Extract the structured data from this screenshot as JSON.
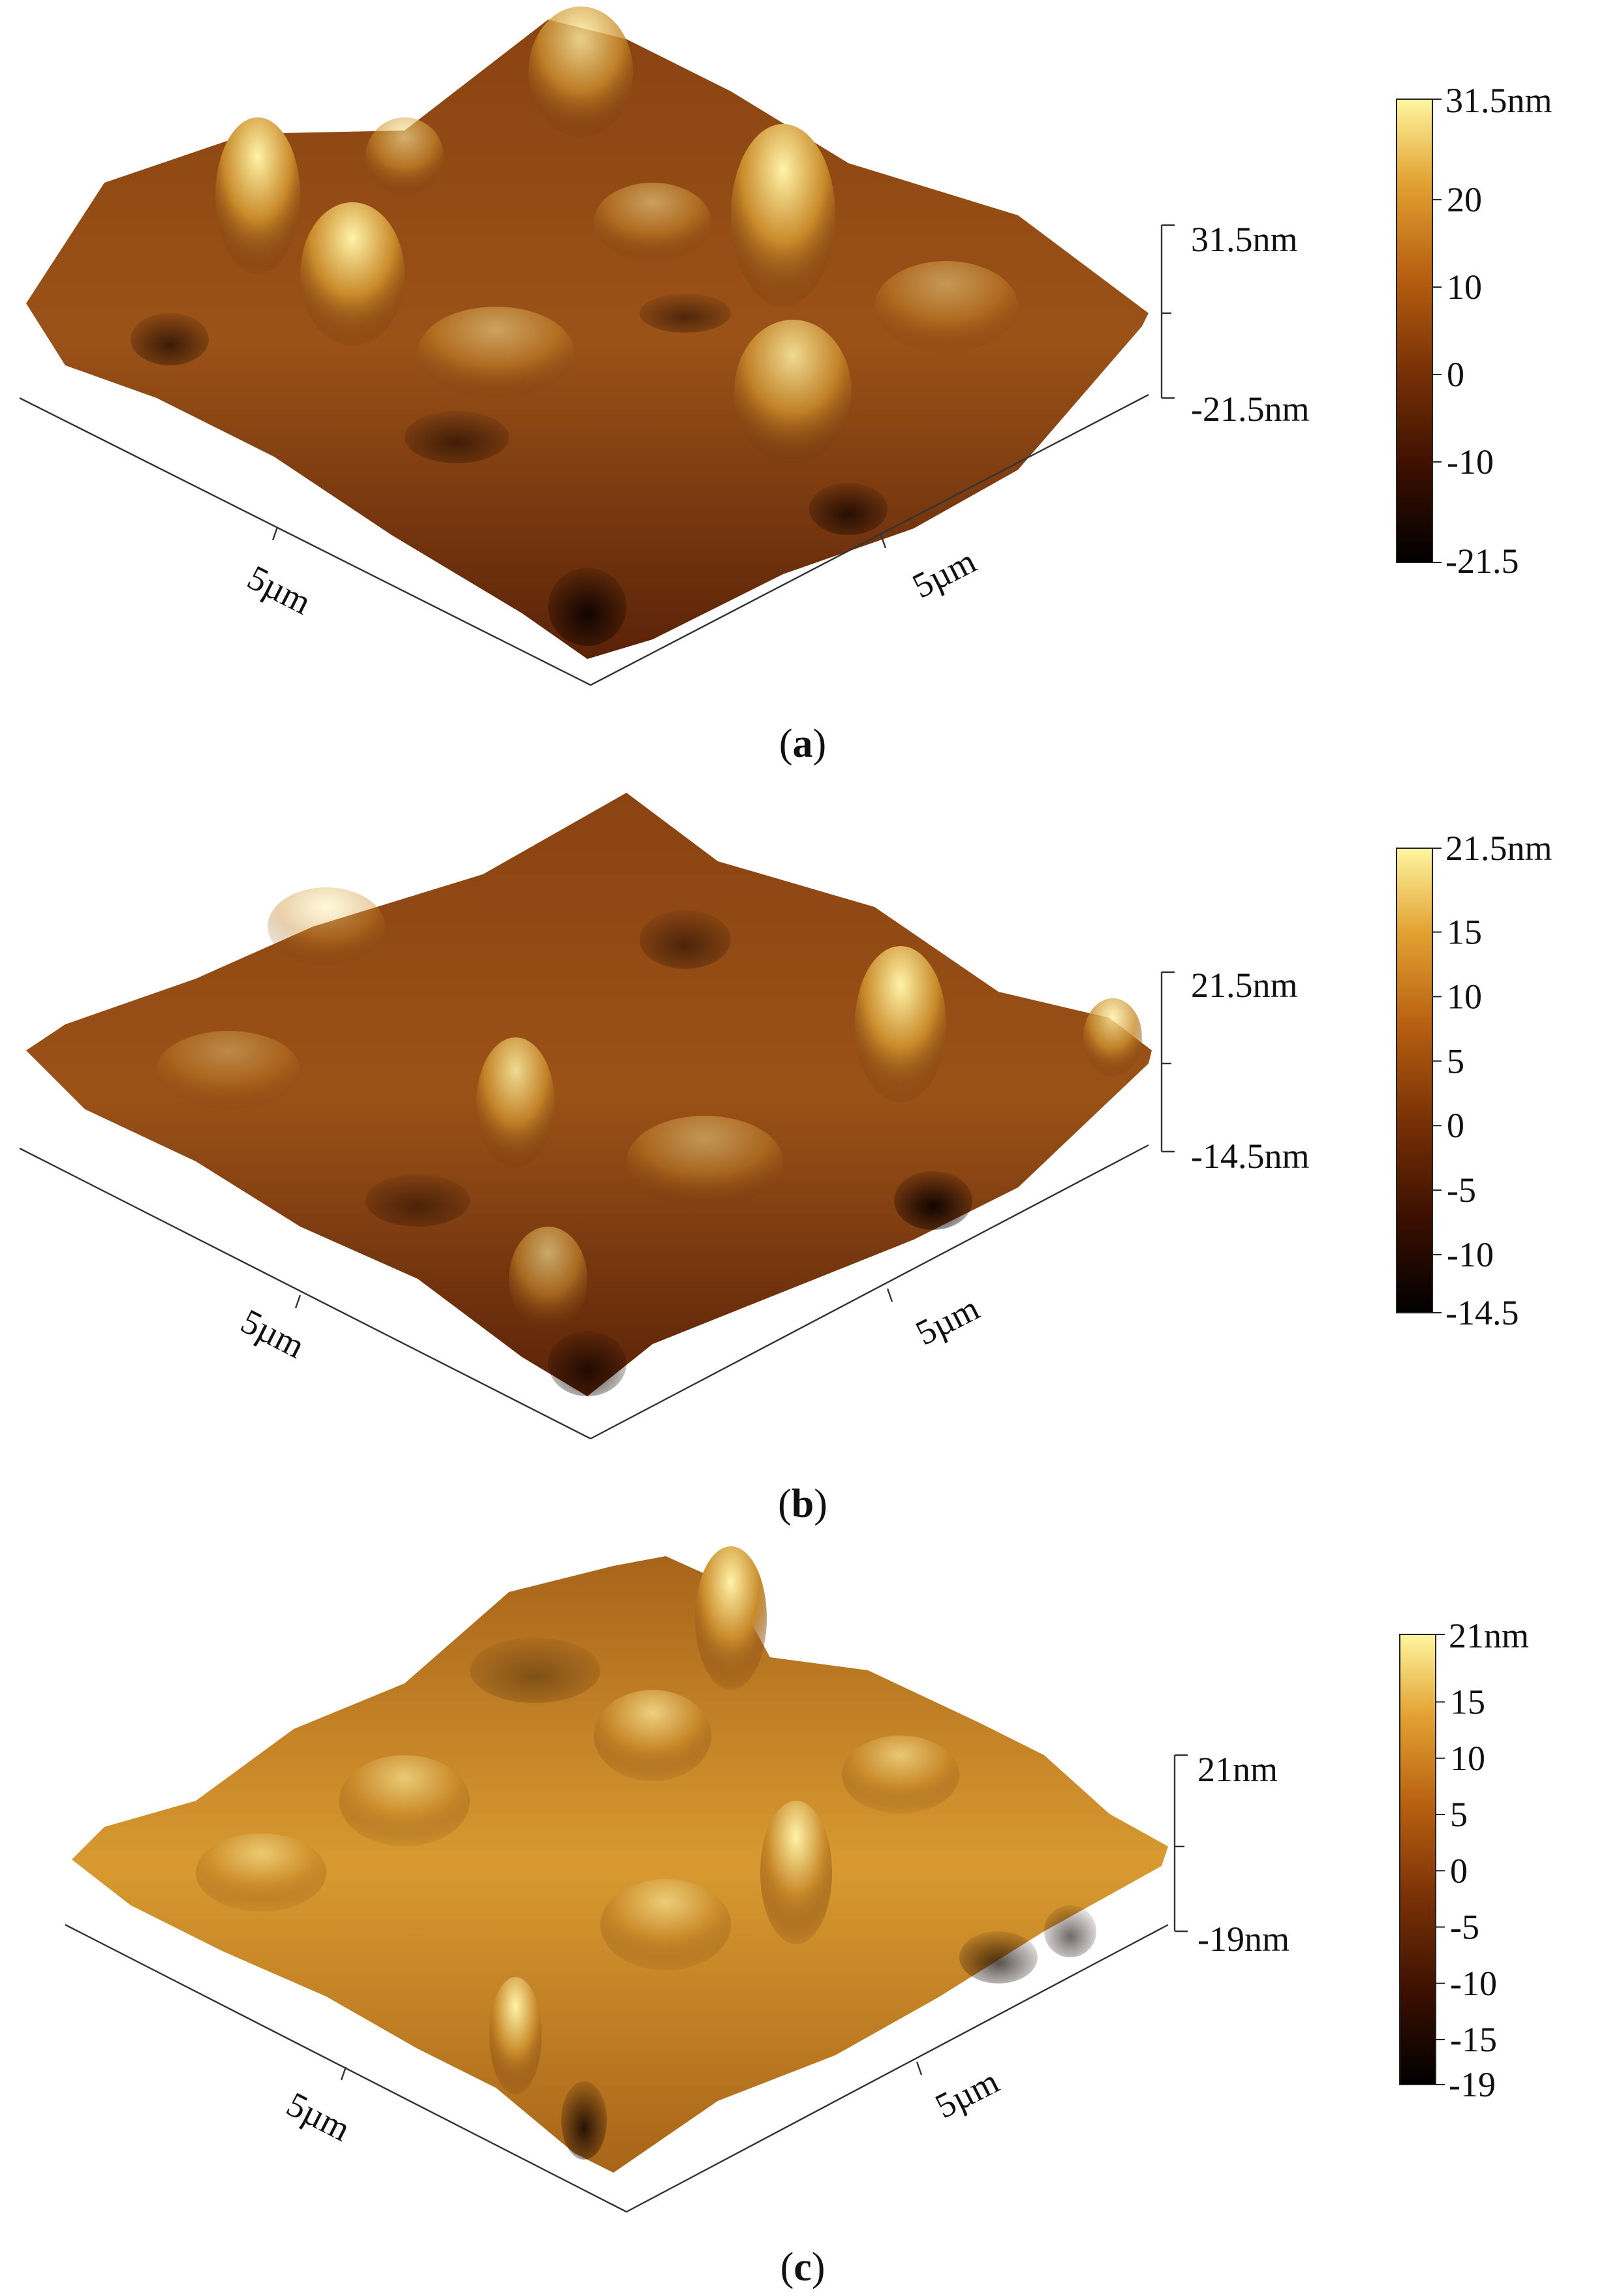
{
  "panels": [
    {
      "id": "a",
      "caption_open": "(",
      "caption_letter": "a",
      "caption_close": ")",
      "z_axis": {
        "top": "31.5nm",
        "bottom": "-21.5nm"
      },
      "x_axis_label": "5µm",
      "y_axis_label": "5µm",
      "colorbar": {
        "max_label": "31.5nm",
        "ticks": [
          "20",
          "10",
          "0",
          "-10"
        ],
        "min_label": "-21.5",
        "tick_values": [
          20,
          10,
          0,
          -10
        ],
        "min_value": -21.5,
        "max_value": 31.5
      },
      "colors": [
        "#000000",
        "#3a0f00",
        "#7a3206",
        "#b86010",
        "#e2a232",
        "#fff6a0"
      ],
      "tone": "dark"
    },
    {
      "id": "b",
      "caption_open": "(",
      "caption_letter": "b",
      "caption_close": ")",
      "z_axis": {
        "top": "21.5nm",
        "bottom": "-14.5nm"
      },
      "x_axis_label": "5µm",
      "y_axis_label": "5µm",
      "colorbar": {
        "max_label": "21.5nm",
        "ticks": [
          "15",
          "10",
          "5",
          "0",
          "-5",
          "-10"
        ],
        "min_label": "-14.5",
        "tick_values": [
          15,
          10,
          5,
          0,
          -5,
          -10
        ],
        "min_value": -14.5,
        "max_value": 21.5
      },
      "colors": [
        "#000000",
        "#3a0f00",
        "#7a3206",
        "#b86010",
        "#e2a232",
        "#fff6a0"
      ],
      "tone": "dark"
    },
    {
      "id": "c",
      "caption_open": "(",
      "caption_letter": "c",
      "caption_close": ")",
      "z_axis": {
        "top": "21nm",
        "bottom": "-19nm"
      },
      "x_axis_label": "5µm",
      "y_axis_label": "5µm",
      "colorbar": {
        "max_label": "21nm",
        "ticks": [
          "15",
          "10",
          "5",
          "0",
          "-5",
          "-10",
          "-15"
        ],
        "min_label": "-19",
        "tick_values": [
          15,
          10,
          5,
          0,
          -5,
          -10,
          -15
        ],
        "min_value": -19,
        "max_value": 21
      },
      "colors": [
        "#000000",
        "#3a0f00",
        "#7a3206",
        "#b86010",
        "#e2a232",
        "#fff6a0"
      ],
      "tone": "light"
    }
  ]
}
